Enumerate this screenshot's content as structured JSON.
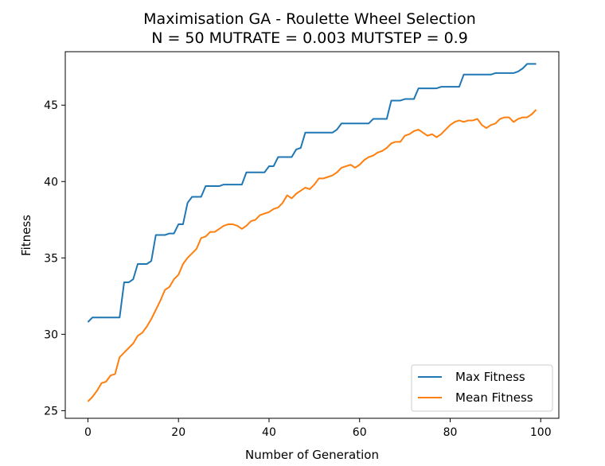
{
  "chart_data": {
    "type": "line",
    "title": "Maximisation GA - Roulette Wheel Selection",
    "subtitle": "N = 50 MUTRATE = 0.003 MUTSTEP = 0.9",
    "xlabel": "Number of Generation",
    "ylabel": "Fitness",
    "xlim": [
      -5,
      104
    ],
    "ylim": [
      24.5,
      48.5
    ],
    "xticks": [
      0,
      20,
      40,
      60,
      80,
      100
    ],
    "yticks": [
      25,
      30,
      35,
      40,
      45
    ],
    "grid": false,
    "legend_position": "lower-right",
    "x_start": 0,
    "x_end": 99,
    "series": [
      {
        "name": "Max Fitness",
        "color": "#1f77b4",
        "keypoints": [
          [
            0,
            30.8
          ],
          [
            1,
            31.1
          ],
          [
            7,
            31.1
          ],
          [
            8,
            33.4
          ],
          [
            9,
            33.4
          ],
          [
            10,
            33.6
          ],
          [
            11,
            34.6
          ],
          [
            13,
            34.6
          ],
          [
            14,
            34.8
          ],
          [
            15,
            36.5
          ],
          [
            17,
            36.5
          ],
          [
            18,
            36.6
          ],
          [
            19,
            36.6
          ],
          [
            20,
            37.2
          ],
          [
            21,
            37.2
          ],
          [
            22,
            38.6
          ],
          [
            23,
            39.0
          ],
          [
            25,
            39.0
          ],
          [
            26,
            39.7
          ],
          [
            29,
            39.7
          ],
          [
            30,
            39.8
          ],
          [
            34,
            39.8
          ],
          [
            35,
            40.6
          ],
          [
            36,
            40.6
          ],
          [
            37,
            40.6
          ],
          [
            39,
            40.6
          ],
          [
            40,
            41.0
          ],
          [
            41,
            41.0
          ],
          [
            42,
            41.6
          ],
          [
            45,
            41.6
          ],
          [
            46,
            42.1
          ],
          [
            47,
            42.2
          ],
          [
            48,
            43.2
          ],
          [
            54,
            43.2
          ],
          [
            55,
            43.4
          ],
          [
            56,
            43.8
          ],
          [
            62,
            43.8
          ],
          [
            63,
            44.1
          ],
          [
            66,
            44.1
          ],
          [
            67,
            45.3
          ],
          [
            69,
            45.3
          ],
          [
            70,
            45.4
          ],
          [
            72,
            45.4
          ],
          [
            73,
            46.1
          ],
          [
            77,
            46.1
          ],
          [
            78,
            46.2
          ],
          [
            82,
            46.2
          ],
          [
            83,
            47.0
          ],
          [
            89,
            47.0
          ],
          [
            90,
            47.1
          ],
          [
            94,
            47.1
          ],
          [
            95,
            47.2
          ],
          [
            96,
            47.4
          ],
          [
            97,
            47.7
          ],
          [
            99,
            47.7
          ]
        ]
      },
      {
        "name": "Mean Fitness",
        "color": "#ff7f0e",
        "keypoints": [
          [
            0,
            25.6
          ],
          [
            1,
            25.9
          ],
          [
            2,
            26.3
          ],
          [
            3,
            26.8
          ],
          [
            4,
            26.9
          ],
          [
            5,
            27.3
          ],
          [
            6,
            27.4
          ],
          [
            7,
            28.5
          ],
          [
            8,
            28.8
          ],
          [
            9,
            29.1
          ],
          [
            10,
            29.4
          ],
          [
            11,
            29.9
          ],
          [
            12,
            30.1
          ],
          [
            13,
            30.5
          ],
          [
            14,
            31.0
          ],
          [
            15,
            31.6
          ],
          [
            16,
            32.2
          ],
          [
            17,
            32.9
          ],
          [
            18,
            33.1
          ],
          [
            19,
            33.6
          ],
          [
            20,
            33.9
          ],
          [
            21,
            34.6
          ],
          [
            22,
            35.0
          ],
          [
            23,
            35.3
          ],
          [
            24,
            35.6
          ],
          [
            25,
            36.3
          ],
          [
            26,
            36.4
          ],
          [
            27,
            36.7
          ],
          [
            28,
            36.7
          ],
          [
            29,
            36.9
          ],
          [
            30,
            37.1
          ],
          [
            31,
            37.2
          ],
          [
            32,
            37.2
          ],
          [
            33,
            37.1
          ],
          [
            34,
            36.9
          ],
          [
            35,
            37.1
          ],
          [
            36,
            37.4
          ],
          [
            37,
            37.5
          ],
          [
            38,
            37.8
          ],
          [
            39,
            37.9
          ],
          [
            40,
            38.0
          ],
          [
            41,
            38.2
          ],
          [
            42,
            38.3
          ],
          [
            43,
            38.6
          ],
          [
            44,
            39.1
          ],
          [
            45,
            38.9
          ],
          [
            46,
            39.2
          ],
          [
            47,
            39.4
          ],
          [
            48,
            39.6
          ],
          [
            49,
            39.5
          ],
          [
            50,
            39.8
          ],
          [
            51,
            40.2
          ],
          [
            52,
            40.2
          ],
          [
            53,
            40.3
          ],
          [
            54,
            40.4
          ],
          [
            55,
            40.6
          ],
          [
            56,
            40.9
          ],
          [
            57,
            41.0
          ],
          [
            58,
            41.1
          ],
          [
            59,
            40.9
          ],
          [
            60,
            41.1
          ],
          [
            61,
            41.4
          ],
          [
            62,
            41.6
          ],
          [
            63,
            41.7
          ],
          [
            64,
            41.9
          ],
          [
            65,
            42.0
          ],
          [
            66,
            42.2
          ],
          [
            67,
            42.5
          ],
          [
            68,
            42.6
          ],
          [
            69,
            42.6
          ],
          [
            70,
            43.0
          ],
          [
            71,
            43.1
          ],
          [
            72,
            43.3
          ],
          [
            73,
            43.4
          ],
          [
            74,
            43.2
          ],
          [
            75,
            43.0
          ],
          [
            76,
            43.1
          ],
          [
            77,
            42.9
          ],
          [
            78,
            43.1
          ],
          [
            79,
            43.4
          ],
          [
            80,
            43.7
          ],
          [
            81,
            43.9
          ],
          [
            82,
            44.0
          ],
          [
            83,
            43.9
          ],
          [
            84,
            44.0
          ],
          [
            85,
            44.0
          ],
          [
            86,
            44.1
          ],
          [
            87,
            43.7
          ],
          [
            88,
            43.5
          ],
          [
            89,
            43.7
          ],
          [
            90,
            43.8
          ],
          [
            91,
            44.1
          ],
          [
            92,
            44.2
          ],
          [
            93,
            44.2
          ],
          [
            94,
            43.9
          ],
          [
            95,
            44.1
          ],
          [
            96,
            44.2
          ],
          [
            97,
            44.2
          ],
          [
            98,
            44.4
          ],
          [
            99,
            44.7
          ]
        ]
      }
    ]
  }
}
